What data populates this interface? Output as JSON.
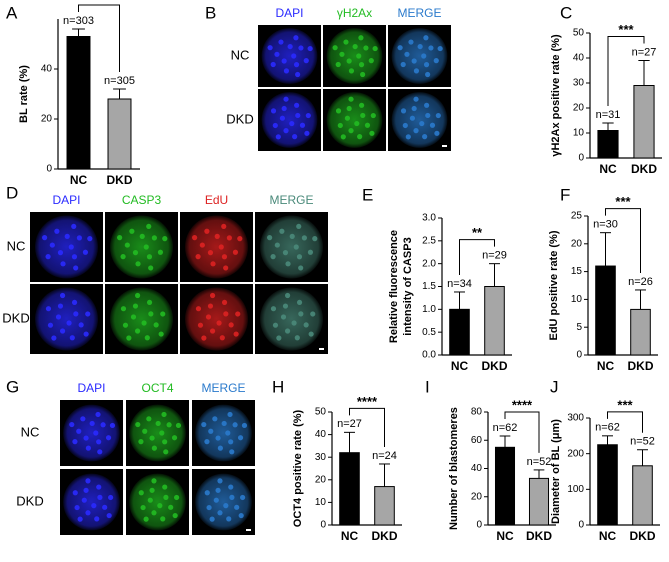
{
  "chart_data": [
    {
      "type": "bar",
      "panel": "A",
      "ylabel": "BL rate (%)",
      "categories": [
        "NC",
        "DKD"
      ],
      "values": [
        53,
        28
      ],
      "errors": [
        3,
        4
      ],
      "value_labels": [
        "n=303",
        "n=305"
      ],
      "significance": "***",
      "colors": [
        "#000000",
        "#a6a6a6"
      ],
      "ylim": [
        0,
        60
      ],
      "yticks": [
        0,
        20,
        40
      ]
    },
    {
      "type": "bar",
      "panel": "C",
      "ylabel": "γH2Ax positive rate (%)",
      "categories": [
        "NC",
        "DKD"
      ],
      "values": [
        11,
        29
      ],
      "errors": [
        3,
        10
      ],
      "value_labels": [
        "n=31",
        "n=27"
      ],
      "significance": "***",
      "colors": [
        "#000000",
        "#a6a6a6"
      ],
      "ylim": [
        0,
        50
      ],
      "yticks": [
        0,
        10,
        20,
        30,
        40,
        50
      ]
    },
    {
      "type": "bar",
      "panel": "E",
      "ylabel": [
        "Relative fluorescence",
        "intensity of CASP3"
      ],
      "categories": [
        "NC",
        "DKD"
      ],
      "values": [
        1.0,
        1.5
      ],
      "errors": [
        0.38,
        0.5
      ],
      "value_labels": [
        "n=34",
        "n=29"
      ],
      "significance": "**",
      "colors": [
        "#000000",
        "#a6a6a6"
      ],
      "ylim": [
        0,
        3
      ],
      "yticks": [
        {
          "value": 0,
          "label": "0.0"
        },
        0.5,
        {
          "value": 1,
          "label": "1.0"
        },
        1.5,
        {
          "value": 2,
          "label": "2.0"
        },
        2.5,
        {
          "value": 3,
          "label": "3.0"
        }
      ]
    },
    {
      "type": "bar",
      "panel": "F",
      "ylabel": "EdU positive rate (%)",
      "categories": [
        "NC",
        "DKD"
      ],
      "values": [
        16,
        8.2
      ],
      "errors": [
        6,
        3.5
      ],
      "value_labels": [
        "n=30",
        "n=26"
      ],
      "significance": "***",
      "colors": [
        "#000000",
        "#a6a6a6"
      ],
      "ylim": [
        0,
        25
      ],
      "yticks": [
        0,
        5,
        10,
        15,
        20,
        25
      ]
    },
    {
      "type": "bar",
      "panel": "H",
      "ylabel": "OCT4 positive rate (%)",
      "categories": [
        "NC",
        "DKD"
      ],
      "values": [
        32,
        17
      ],
      "errors": [
        9,
        10
      ],
      "value_labels": [
        "n=27",
        "n=24"
      ],
      "significance": "****",
      "colors": [
        "#000000",
        "#a6a6a6"
      ],
      "ylim": [
        0,
        50
      ],
      "yticks": [
        0,
        10,
        20,
        30,
        40,
        50
      ]
    },
    {
      "type": "bar",
      "panel": "I",
      "ylabel": "Number of blastomeres",
      "categories": [
        "NC",
        "DKD"
      ],
      "values": [
        55,
        33
      ],
      "errors": [
        8,
        6
      ],
      "value_labels": [
        "n=62",
        "n=52"
      ],
      "significance": "****",
      "colors": [
        "#000000",
        "#a6a6a6"
      ],
      "ylim": [
        0,
        80
      ],
      "yticks": [
        0,
        20,
        40,
        60,
        80
      ]
    },
    {
      "type": "bar",
      "panel": "J",
      "ylabel": "Diameter of BL (μm)",
      "categories": [
        "NC",
        "DKD"
      ],
      "values": [
        225,
        166
      ],
      "errors": [
        25,
        45
      ],
      "value_labels": [
        "n=62",
        "n=52"
      ],
      "significance": "***",
      "colors": [
        "#000000",
        "#a6a6a6"
      ],
      "ylim": [
        0,
        300
      ],
      "yticks": [
        0,
        100,
        200,
        300
      ]
    }
  ],
  "image_panels": [
    {
      "panel": "B",
      "rows": [
        "NC",
        "DKD"
      ],
      "channels": [
        {
          "name": "DAPI",
          "color": "#2a2aff"
        },
        {
          "name": "γH2Ax",
          "color": "#22bb22"
        },
        {
          "name": "MERGE",
          "color": "#2a7acc"
        }
      ]
    },
    {
      "panel": "D",
      "rows": [
        "NC",
        "DKD"
      ],
      "channels": [
        {
          "name": "DAPI",
          "color": "#2a2aff"
        },
        {
          "name": "CASP3",
          "color": "#22bb22"
        },
        {
          "name": "EdU",
          "color": "#dd2222"
        },
        {
          "name": "MERGE",
          "color": "#4a8a7a"
        }
      ]
    },
    {
      "panel": "G",
      "rows": [
        "NC",
        "DKD"
      ],
      "channels": [
        {
          "name": "DAPI",
          "color": "#2a2aff"
        },
        {
          "name": "OCT4",
          "color": "#22bb22"
        },
        {
          "name": "MERGE",
          "color": "#2a7acc"
        }
      ]
    }
  ]
}
